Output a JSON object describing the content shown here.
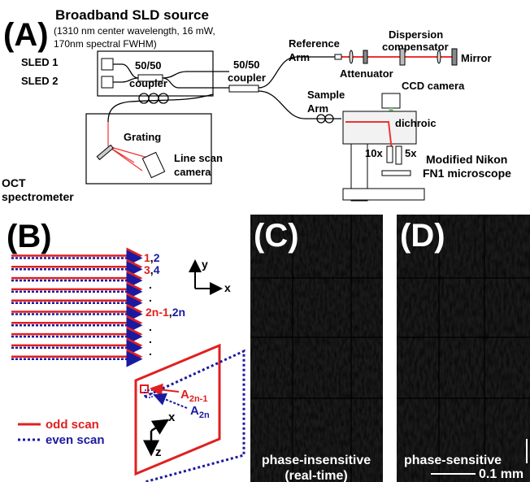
{
  "panel_a": {
    "label": "(A)",
    "source": {
      "title": "Broadband SLD source",
      "specs": [
        "(1310 nm center wavelength, 16 mW,",
        "170nm spectral FWHM)"
      ]
    },
    "sleds": [
      "SLED 1",
      "SLED 2"
    ],
    "coupler_1": [
      "50/50",
      "coupler"
    ],
    "coupler_2": [
      "50/50",
      "coupler"
    ],
    "reference_arm": [
      "Reference",
      "Arm"
    ],
    "dispersion_compensator": [
      "Dispersion",
      "compensator"
    ],
    "mirror": "Mirror",
    "attenuator": "Attenuator",
    "ccd_camera": "CCD camera",
    "sample_arm": [
      "Sample",
      "Arm"
    ],
    "dichroic": "dichroic",
    "grating": "Grating",
    "line_scan_camera": [
      "Line scan",
      "camera"
    ],
    "spectrometer": [
      "OCT",
      "spectrometer"
    ],
    "objectives": [
      "10x",
      "5x"
    ],
    "microscope": [
      "Modified Nikon",
      "FN1 microscope"
    ]
  },
  "panel_b": {
    "label": "(B)",
    "scan_labels": [
      {
        "odd": "1",
        "even": "2"
      },
      {
        "odd": "3",
        "even": "4"
      },
      {
        "odd": "2n-1",
        "even": "2n"
      }
    ],
    "separator": ",",
    "ellipsis": ".",
    "axes_1": [
      "y",
      "x"
    ],
    "a_odd": {
      "base": "A",
      "sub": "2n-1"
    },
    "a_even": {
      "base": "A",
      "sub": "2n"
    },
    "axes_2": [
      "x",
      "z"
    ],
    "legend": [
      "odd scan",
      "even scan"
    ]
  },
  "panel_c": {
    "label": "(C)",
    "caption": [
      "phase-insensitive",
      "(real-time)"
    ]
  },
  "panel_d": {
    "label": "(D)",
    "caption": "phase-sensitive",
    "scale": "0.1 mm"
  }
}
